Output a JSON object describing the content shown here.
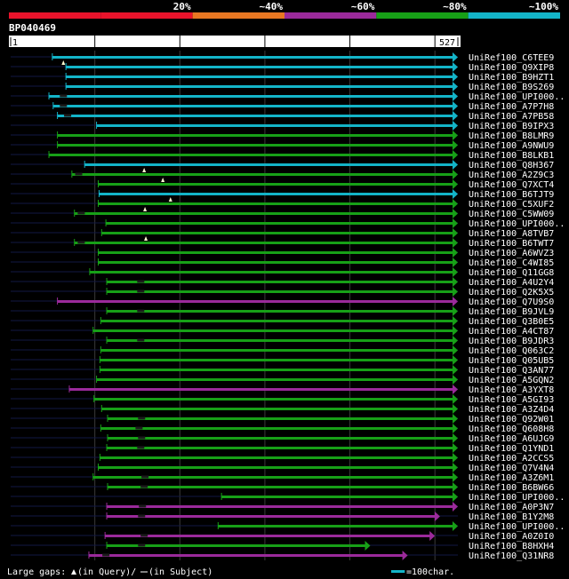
{
  "chart_data": {
    "type": "alignment-overview",
    "title": "BP040469",
    "query_range": [
      1,
      527
    ],
    "ruler": {
      "start_label": "1",
      "end_label": "527"
    },
    "identity_legend": [
      {
        "label": "",
        "color": "#e8132b"
      },
      {
        "label": "20%",
        "color": "#e8132b"
      },
      {
        "label": "~40%",
        "color": "#e87722"
      },
      {
        "label": "~60%",
        "color": "#9b2a9b"
      },
      {
        "label": "~80%",
        "color": "#17a017"
      },
      {
        "label": "~100%",
        "color": "#13b4c8"
      }
    ],
    "grid_positions": [
      100,
      200,
      300,
      400,
      500
    ],
    "hits": [
      {
        "label": "UniRef100_C6TEE9",
        "start": 50,
        "end": 527,
        "color": "#13b4c8",
        "gap_query": [],
        "gap_subject": []
      },
      {
        "label": "UniRef100_Q9XIP8",
        "start": 66,
        "end": 527,
        "color": "#13b4c8",
        "gap_query": [
          63
        ],
        "gap_subject": []
      },
      {
        "label": "UniRef100_B9HZT1",
        "start": 66,
        "end": 527,
        "color": "#13b4c8",
        "gap_query": [],
        "gap_subject": []
      },
      {
        "label": "UniRef100_B9S269",
        "start": 66,
        "end": 527,
        "color": "#13b4c8",
        "gap_query": [],
        "gap_subject": []
      },
      {
        "label": "UniRef100_UPI000..",
        "start": 46,
        "end": 527,
        "color": "#13b4c8",
        "gap_query": [],
        "gap_subject": [
          63
        ]
      },
      {
        "label": "UniRef100_A7P7H8",
        "start": 51,
        "end": 527,
        "color": "#13b4c8",
        "gap_query": [],
        "gap_subject": [
          63
        ]
      },
      {
        "label": "UniRef100_A7PB58",
        "start": 56,
        "end": 527,
        "color": "#13b4c8",
        "gap_query": [],
        "gap_subject": [
          68
        ]
      },
      {
        "label": "UniRef100_B9IPX3",
        "start": 102,
        "end": 527,
        "color": "#13b4c8",
        "gap_query": [],
        "gap_subject": []
      },
      {
        "label": "UniRef100_B8LMR9",
        "start": 56,
        "end": 527,
        "color": "#17a017",
        "gap_query": [],
        "gap_subject": []
      },
      {
        "label": "UniRef100_A9NWU9",
        "start": 56,
        "end": 527,
        "color": "#17a017",
        "gap_query": [],
        "gap_subject": []
      },
      {
        "label": "UniRef100_B8LKB1",
        "start": 46,
        "end": 527,
        "color": "#17a017",
        "gap_query": [],
        "gap_subject": []
      },
      {
        "label": "UniRef100_Q8H367",
        "start": 88,
        "end": 527,
        "color": "#13b4c8",
        "gap_query": [],
        "gap_subject": []
      },
      {
        "label": "UniRef100_A2Z9C3",
        "start": 73,
        "end": 527,
        "color": "#17a017",
        "gap_query": [
          158
        ],
        "gap_subject": [
          81
        ]
      },
      {
        "label": "UniRef100_Q7XCT4",
        "start": 104,
        "end": 527,
        "color": "#17a017",
        "gap_query": [
          180
        ],
        "gap_subject": []
      },
      {
        "label": "UniRef100_B6TJT9",
        "start": 105,
        "end": 527,
        "color": "#13b4c8",
        "gap_query": [],
        "gap_subject": []
      },
      {
        "label": "UniRef100_C5XUF2",
        "start": 104,
        "end": 527,
        "color": "#17a017",
        "gap_query": [
          189
        ],
        "gap_subject": []
      },
      {
        "label": "UniRef100_C5WW09",
        "start": 76,
        "end": 527,
        "color": "#17a017",
        "gap_query": [
          159
        ],
        "gap_subject": [
          84
        ]
      },
      {
        "label": "UniRef100_UPI000..",
        "start": 113,
        "end": 527,
        "color": "#17a017",
        "gap_query": [],
        "gap_subject": []
      },
      {
        "label": "UniRef100_A8TVB7",
        "start": 108,
        "end": 527,
        "color": "#17a017",
        "gap_query": [],
        "gap_subject": []
      },
      {
        "label": "UniRef100_B6TWT7",
        "start": 76,
        "end": 527,
        "color": "#17a017",
        "gap_query": [
          160
        ],
        "gap_subject": [
          84
        ]
      },
      {
        "label": "UniRef100_A6WVZ3",
        "start": 104,
        "end": 527,
        "color": "#17a017",
        "gap_query": [],
        "gap_subject": []
      },
      {
        "label": "UniRef100_C4WI85",
        "start": 104,
        "end": 527,
        "color": "#17a017",
        "gap_query": [],
        "gap_subject": []
      },
      {
        "label": "UniRef100_Q11GG8",
        "start": 94,
        "end": 527,
        "color": "#17a017",
        "gap_query": [],
        "gap_subject": []
      },
      {
        "label": "UniRef100_A4U2Y4",
        "start": 114,
        "end": 527,
        "color": "#17a017",
        "gap_query": [],
        "gap_subject": [
          154
        ]
      },
      {
        "label": "UniRef100_Q2K5X5",
        "start": 114,
        "end": 527,
        "color": "#17a017",
        "gap_query": [],
        "gap_subject": [
          154
        ]
      },
      {
        "label": "UniRef100_Q7U9S0",
        "start": 56,
        "end": 527,
        "color": "#9b2a9b",
        "gap_query": [],
        "gap_subject": []
      },
      {
        "label": "UniRef100_B9JVL9",
        "start": 114,
        "end": 527,
        "color": "#17a017",
        "gap_query": [],
        "gap_subject": [
          154
        ]
      },
      {
        "label": "UniRef100_Q3B0E5",
        "start": 107,
        "end": 527,
        "color": "#17a017",
        "gap_query": [],
        "gap_subject": []
      },
      {
        "label": "UniRef100_A4CT87",
        "start": 98,
        "end": 527,
        "color": "#17a017",
        "gap_query": [],
        "gap_subject": []
      },
      {
        "label": "UniRef100_B9JDR3",
        "start": 114,
        "end": 527,
        "color": "#17a017",
        "gap_query": [],
        "gap_subject": [
          154
        ]
      },
      {
        "label": "UniRef100_Q063C2",
        "start": 107,
        "end": 527,
        "color": "#17a017",
        "gap_query": [],
        "gap_subject": []
      },
      {
        "label": "UniRef100_Q05UB5",
        "start": 106,
        "end": 527,
        "color": "#17a017",
        "gap_query": [],
        "gap_subject": []
      },
      {
        "label": "UniRef100_Q3AN77",
        "start": 106,
        "end": 527,
        "color": "#17a017",
        "gap_query": [],
        "gap_subject": []
      },
      {
        "label": "UniRef100_A5GQN2",
        "start": 102,
        "end": 527,
        "color": "#17a017",
        "gap_query": [],
        "gap_subject": []
      },
      {
        "label": "UniRef100_A3YXT8",
        "start": 70,
        "end": 527,
        "color": "#9b2a9b",
        "gap_query": [],
        "gap_subject": []
      },
      {
        "label": "UniRef100_A5GI93",
        "start": 99,
        "end": 527,
        "color": "#17a017",
        "gap_query": [],
        "gap_subject": []
      },
      {
        "label": "UniRef100_A3Z4D4",
        "start": 108,
        "end": 527,
        "color": "#17a017",
        "gap_query": [],
        "gap_subject": []
      },
      {
        "label": "UniRef100_Q92W01",
        "start": 115,
        "end": 527,
        "color": "#17a017",
        "gap_query": [],
        "gap_subject": [
          155
        ]
      },
      {
        "label": "UniRef100_Q608H8",
        "start": 107,
        "end": 527,
        "color": "#17a017",
        "gap_query": [],
        "gap_subject": [
          152
        ]
      },
      {
        "label": "UniRef100_A6UJG9",
        "start": 115,
        "end": 527,
        "color": "#17a017",
        "gap_query": [],
        "gap_subject": [
          155
        ]
      },
      {
        "label": "UniRef100_Q1YND1",
        "start": 114,
        "end": 527,
        "color": "#17a017",
        "gap_query": [],
        "gap_subject": [
          154
        ]
      },
      {
        "label": "UniRef100_A2CCS5",
        "start": 106,
        "end": 527,
        "color": "#17a017",
        "gap_query": [],
        "gap_subject": []
      },
      {
        "label": "UniRef100_Q7V4N4",
        "start": 104,
        "end": 527,
        "color": "#17a017",
        "gap_query": [],
        "gap_subject": []
      },
      {
        "label": "UniRef100_A3Z6M1",
        "start": 98,
        "end": 527,
        "color": "#17a017",
        "gap_query": [],
        "gap_subject": [
          159
        ]
      },
      {
        "label": "UniRef100_B6BW66",
        "start": 115,
        "end": 527,
        "color": "#17a017",
        "gap_query": [],
        "gap_subject": [
          158
        ]
      },
      {
        "label": "UniRef100_UPI000..",
        "start": 249,
        "end": 527,
        "color": "#17a017",
        "gap_query": [],
        "gap_subject": []
      },
      {
        "label": "UniRef100_A0P3N7",
        "start": 114,
        "end": 527,
        "color": "#9b2a9b",
        "gap_query": [],
        "gap_subject": [
          156
        ]
      },
      {
        "label": "UniRef100_B1Y2M8",
        "start": 114,
        "end": 506,
        "color": "#9b2a9b",
        "gap_query": [],
        "gap_subject": [
          155
        ]
      },
      {
        "label": "UniRef100_UPI000..",
        "start": 245,
        "end": 527,
        "color": "#17a017",
        "gap_query": [],
        "gap_subject": []
      },
      {
        "label": "UniRef100_A0Z0I0",
        "start": 112,
        "end": 500,
        "color": "#9b2a9b",
        "gap_query": [],
        "gap_subject": [
          158
        ]
      },
      {
        "label": "UniRef100_B8HXH4",
        "start": 114,
        "end": 424,
        "color": "#17a017",
        "gap_query": [],
        "gap_subject": [
          155
        ]
      },
      {
        "label": "UniRef100_Q31NR8",
        "start": 93,
        "end": 468,
        "color": "#9b2a9b",
        "gap_query": [],
        "gap_subject": [
          113
        ]
      }
    ],
    "footer": {
      "gaps_prefix": "Large gaps: ",
      "gaps_query": "(in Query)/",
      "gaps_subject": "(in Subject)",
      "scale_label": "=100char.",
      "scale_value": 100,
      "scale_color": "#13b4c8"
    }
  }
}
